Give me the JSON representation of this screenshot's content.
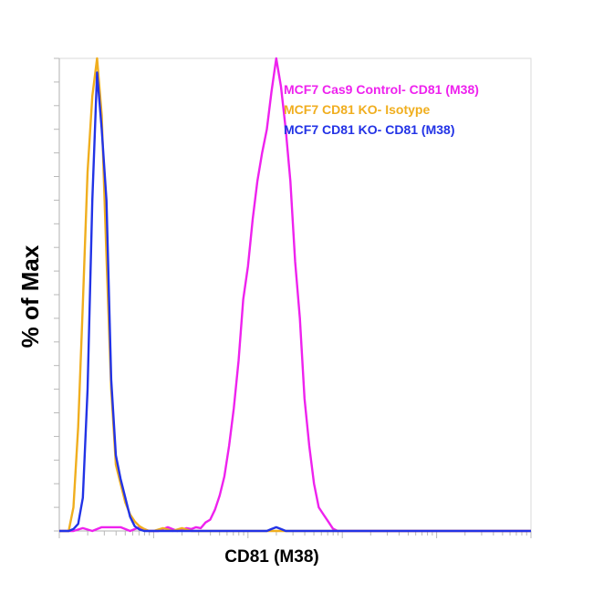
{
  "chart_data": {
    "type": "line",
    "title": "",
    "xlabel": "CD81 (M38)",
    "ylabel": "% of Max",
    "xlim": [
      0,
      100
    ],
    "ylim": [
      0,
      100
    ],
    "grid": false,
    "legend_placement": "top-right",
    "series": [
      {
        "name": "MCF7 Cas9 Control- CD81 (M38)",
        "color": "#ee22ee",
        "x": [
          0,
          3,
          5,
          7,
          9,
          11,
          13,
          15,
          17,
          19,
          21,
          23,
          25,
          27,
          28,
          29,
          30,
          31,
          32,
          33,
          34,
          35,
          36,
          37,
          38,
          39,
          40,
          41,
          42,
          43,
          44,
          45,
          46,
          47,
          48,
          49,
          50,
          51,
          52,
          53,
          54,
          55,
          56,
          57,
          58,
          59,
          60,
          62,
          65,
          70,
          80,
          90,
          100
        ],
        "y": [
          0,
          0,
          0.6,
          0,
          0.8,
          0.8,
          0.8,
          0,
          0.8,
          0,
          0,
          0.8,
          0,
          0.6,
          0.4,
          0.8,
          0.6,
          1.8,
          2.4,
          4.5,
          7.5,
          11.5,
          18,
          26,
          36,
          49,
          56,
          66,
          74,
          80,
          85,
          93,
          100,
          94,
          85,
          74,
          57,
          45,
          28,
          18,
          10,
          5,
          3.5,
          2,
          0.5,
          0,
          0,
          0,
          0,
          0,
          0,
          0,
          0
        ]
      },
      {
        "name": "MCF7 CD81 KO- Isotype",
        "color": "#f0ae1e",
        "x": [
          0,
          2,
          3,
          4,
          5,
          6,
          7,
          8,
          9,
          10,
          11,
          12,
          13,
          14,
          15,
          16,
          17,
          18,
          19,
          20,
          22,
          24,
          26,
          28,
          30,
          32,
          40,
          50,
          60,
          70,
          80,
          90,
          100
        ],
        "y": [
          0,
          0,
          5,
          22,
          48,
          76,
          92,
          100,
          88,
          58,
          30,
          14,
          10,
          6,
          3.5,
          2,
          1,
          0.4,
          0,
          0,
          0.6,
          0,
          0.6,
          0,
          0,
          0,
          0,
          0,
          0,
          0,
          0,
          0,
          0
        ]
      },
      {
        "name": "MCF7 CD81 KO- CD81 (M38)",
        "color": "#2233e6",
        "x": [
          0,
          2,
          3,
          4,
          5,
          6,
          7,
          8,
          9,
          10,
          11,
          12,
          13,
          14,
          15,
          16,
          17,
          18,
          19,
          20,
          24,
          30,
          40,
          42,
          44,
          45,
          46,
          47,
          48,
          50,
          60,
          70,
          80,
          90,
          100
        ],
        "y": [
          0,
          0,
          0.4,
          1.5,
          7,
          30,
          70,
          97,
          85,
          70,
          32,
          16,
          11,
          7,
          3,
          1,
          0.3,
          0,
          0,
          0,
          0,
          0,
          0,
          0,
          0,
          0.4,
          0.8,
          0.4,
          0,
          0,
          0,
          0,
          0,
          0,
          0
        ]
      }
    ]
  }
}
